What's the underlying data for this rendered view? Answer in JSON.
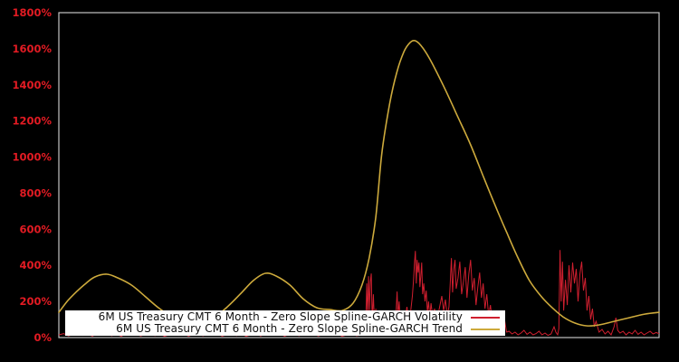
{
  "window": {
    "background": "#000000"
  },
  "chart_data": {
    "type": "line",
    "title": "",
    "xlabel": "",
    "ylabel": "",
    "ylim": [
      0,
      1800
    ],
    "ytick_step": 200,
    "ytick_labels": [
      "0%",
      "200%",
      "400%",
      "600%",
      "800%",
      "1000%",
      "1200%",
      "1400%",
      "1600%",
      "1800%"
    ],
    "xtick_labels": [],
    "grid": false,
    "legend_position": "inside-lower-left",
    "axis_label_color": "#e31b23",
    "border_color": "#c3c3c3",
    "x_domain": [
      0,
      100
    ],
    "series": [
      {
        "name": "6M US Treasury CMT 6 Month - Zero Slope Spline-GARCH Volatility",
        "color": "#cf1f2f",
        "points": [
          [
            0,
            15
          ],
          [
            0.8,
            22
          ],
          [
            1.6,
            9
          ],
          [
            2.4,
            18
          ],
          [
            3.2,
            26
          ],
          [
            4,
            12
          ],
          [
            4.8,
            20
          ],
          [
            5.6,
            8
          ],
          [
            6.4,
            24
          ],
          [
            7.2,
            14
          ],
          [
            8,
            28
          ],
          [
            8.8,
            10
          ],
          [
            9.6,
            19
          ],
          [
            10.4,
            7
          ],
          [
            11.2,
            23
          ],
          [
            12,
            15
          ],
          [
            12.8,
            27
          ],
          [
            13.6,
            9
          ],
          [
            14.4,
            17
          ],
          [
            15.2,
            25
          ],
          [
            16,
            11
          ],
          [
            16.8,
            21
          ],
          [
            17.6,
            7
          ],
          [
            18.4,
            16
          ],
          [
            19.2,
            28
          ],
          [
            20,
            12
          ],
          [
            20.8,
            22
          ],
          [
            21.6,
            8
          ],
          [
            22.4,
            18
          ],
          [
            23.2,
            26
          ],
          [
            24,
            10
          ],
          [
            24.8,
            20
          ],
          [
            25.6,
            14
          ],
          [
            26.4,
            24
          ],
          [
            27.2,
            8
          ],
          [
            28,
            17
          ],
          [
            28.8,
            27
          ],
          [
            29.6,
            11
          ],
          [
            30.4,
            21
          ],
          [
            31.2,
            7
          ],
          [
            32,
            16
          ],
          [
            32.8,
            25
          ],
          [
            33.6,
            9
          ],
          [
            34.4,
            19
          ],
          [
            35.2,
            28
          ],
          [
            36,
            13
          ],
          [
            36.8,
            22
          ],
          [
            37.6,
            8
          ],
          [
            38.4,
            18
          ],
          [
            39.2,
            26
          ],
          [
            40,
            10
          ],
          [
            40.8,
            20
          ],
          [
            41.6,
            14
          ],
          [
            42.4,
            24
          ],
          [
            43.2,
            9
          ],
          [
            44,
            17
          ],
          [
            44.8,
            27
          ],
          [
            45.6,
            12
          ],
          [
            46.4,
            21
          ],
          [
            47.2,
            7
          ],
          [
            48,
            16
          ],
          [
            48.8,
            25
          ],
          [
            49.6,
            10
          ],
          [
            50.4,
            15
          ],
          [
            50.8,
            18
          ],
          [
            51.1,
            40
          ],
          [
            51.3,
            300
          ],
          [
            51.45,
            120
          ],
          [
            51.6,
            340
          ],
          [
            51.75,
            150
          ],
          [
            51.9,
            310
          ],
          [
            52.05,
            355
          ],
          [
            52.2,
            90
          ],
          [
            52.4,
            240
          ],
          [
            52.6,
            60
          ],
          [
            52.8,
            160
          ],
          [
            53,
            45
          ],
          [
            53.2,
            100
          ],
          [
            53.5,
            40
          ],
          [
            53.8,
            80
          ],
          [
            54.1,
            35
          ],
          [
            54.4,
            65
          ],
          [
            54.7,
            120
          ],
          [
            55,
            45
          ],
          [
            55.3,
            90
          ],
          [
            55.6,
            150
          ],
          [
            55.9,
            60
          ],
          [
            56.2,
            150
          ],
          [
            56.35,
            255
          ],
          [
            56.5,
            120
          ],
          [
            56.7,
            200
          ],
          [
            56.9,
            80
          ],
          [
            57.1,
            140
          ],
          [
            57.4,
            60
          ],
          [
            57.7,
            110
          ],
          [
            58,
            170
          ],
          [
            58.3,
            90
          ],
          [
            58.6,
            140
          ],
          [
            58.9,
            230
          ],
          [
            59.1,
            320
          ],
          [
            59.25,
            410
          ],
          [
            59.4,
            480
          ],
          [
            59.55,
            300
          ],
          [
            59.7,
            430
          ],
          [
            59.85,
            360
          ],
          [
            60,
            415
          ],
          [
            60.15,
            280
          ],
          [
            60.3,
            340
          ],
          [
            60.45,
            415
          ],
          [
            60.6,
            240
          ],
          [
            60.8,
            300
          ],
          [
            61,
            200
          ],
          [
            61.2,
            260
          ],
          [
            61.4,
            140
          ],
          [
            61.6,
            200
          ],
          [
            61.8,
            110
          ],
          [
            62,
            190
          ],
          [
            62.3,
            110
          ],
          [
            62.6,
            160
          ],
          [
            62.9,
            95
          ],
          [
            63.2,
            130
          ],
          [
            63.5,
            180
          ],
          [
            63.8,
            230
          ],
          [
            64.1,
            150
          ],
          [
            64.4,
            210
          ],
          [
            64.7,
            120
          ],
          [
            65,
            170
          ],
          [
            65.2,
            300
          ],
          [
            65.4,
            440
          ],
          [
            65.6,
            250
          ],
          [
            65.8,
            380
          ],
          [
            66,
            430
          ],
          [
            66.2,
            270
          ],
          [
            66.5,
            330
          ],
          [
            66.8,
            420
          ],
          [
            67.1,
            240
          ],
          [
            67.4,
            310
          ],
          [
            67.7,
            390
          ],
          [
            68,
            220
          ],
          [
            68.3,
            350
          ],
          [
            68.6,
            430
          ],
          [
            68.9,
            260
          ],
          [
            69.2,
            330
          ],
          [
            69.5,
            180
          ],
          [
            69.8,
            280
          ],
          [
            70.1,
            360
          ],
          [
            70.4,
            220
          ],
          [
            70.7,
            300
          ],
          [
            71,
            160
          ],
          [
            71.3,
            240
          ],
          [
            71.6,
            120
          ],
          [
            71.9,
            180
          ],
          [
            72.2,
            90
          ],
          [
            72.5,
            130
          ],
          [
            72.8,
            60
          ],
          [
            73.1,
            100
          ],
          [
            73.4,
            50
          ],
          [
            73.7,
            130
          ],
          [
            74,
            40
          ],
          [
            74.3,
            90
          ],
          [
            74.6,
            30
          ],
          [
            75,
            35
          ],
          [
            75.5,
            20
          ],
          [
            76,
            30
          ],
          [
            76.5,
            15
          ],
          [
            77,
            25
          ],
          [
            77.5,
            40
          ],
          [
            78,
            18
          ],
          [
            78.5,
            30
          ],
          [
            79,
            15
          ],
          [
            79.5,
            22
          ],
          [
            80,
            35
          ],
          [
            80.5,
            15
          ],
          [
            81,
            25
          ],
          [
            81.5,
            12
          ],
          [
            82,
            20
          ],
          [
            82.5,
            60
          ],
          [
            82.8,
            30
          ],
          [
            83.1,
            15
          ],
          [
            83.3,
            50
          ],
          [
            83.5,
            485
          ],
          [
            83.7,
            200
          ],
          [
            83.9,
            420
          ],
          [
            84.1,
            150
          ],
          [
            84.4,
            320
          ],
          [
            84.7,
            180
          ],
          [
            85,
            400
          ],
          [
            85.3,
            250
          ],
          [
            85.6,
            415
          ],
          [
            85.9,
            300
          ],
          [
            86.2,
            380
          ],
          [
            86.5,
            200
          ],
          [
            86.8,
            350
          ],
          [
            87.1,
            420
          ],
          [
            87.4,
            260
          ],
          [
            87.7,
            330
          ],
          [
            88,
            150
          ],
          [
            88.3,
            230
          ],
          [
            88.6,
            100
          ],
          [
            88.9,
            160
          ],
          [
            89.2,
            60
          ],
          [
            89.5,
            90
          ],
          [
            90,
            30
          ],
          [
            90.5,
            45
          ],
          [
            91,
            20
          ],
          [
            91.5,
            35
          ],
          [
            92,
            15
          ],
          [
            92.5,
            60
          ],
          [
            92.8,
            110
          ],
          [
            93.1,
            40
          ],
          [
            93.5,
            25
          ],
          [
            94,
            35
          ],
          [
            94.5,
            15
          ],
          [
            95,
            30
          ],
          [
            95.5,
            20
          ],
          [
            96,
            40
          ],
          [
            96.5,
            18
          ],
          [
            97,
            30
          ],
          [
            97.5,
            15
          ],
          [
            98,
            25
          ],
          [
            98.5,
            35
          ],
          [
            99,
            20
          ],
          [
            99.5,
            28
          ],
          [
            100,
            22
          ]
        ]
      },
      {
        "name": "6M US Treasury CMT 6 Month - Zero Slope Spline-GARCH Trend",
        "color": "#cdaa3c",
        "points": [
          [
            0,
            140
          ],
          [
            1.5,
            205
          ],
          [
            3,
            256
          ],
          [
            4.5,
            300
          ],
          [
            6,
            336
          ],
          [
            8,
            351
          ],
          [
            9.8,
            331
          ],
          [
            12.1,
            291
          ],
          [
            14.3,
            230
          ],
          [
            16.6,
            165
          ],
          [
            18.9,
            115
          ],
          [
            21.1,
            80
          ],
          [
            23.4,
            72
          ],
          [
            25.6,
            105
          ],
          [
            27.9,
            165
          ],
          [
            30.2,
            240
          ],
          [
            32.4,
            316
          ],
          [
            34.4,
            356
          ],
          [
            36.2,
            341
          ],
          [
            38.5,
            291
          ],
          [
            40.7,
            215
          ],
          [
            43,
            165
          ],
          [
            45.2,
            155
          ],
          [
            47.2,
            150
          ],
          [
            49,
            190
          ],
          [
            50.5,
            291
          ],
          [
            51.7,
            441
          ],
          [
            52.8,
            667
          ],
          [
            53.8,
            1018
          ],
          [
            55.1,
            1293
          ],
          [
            56.3,
            1469
          ],
          [
            57.5,
            1584
          ],
          [
            58.5,
            1634
          ],
          [
            59.3,
            1645
          ],
          [
            60.3,
            1619
          ],
          [
            61.8,
            1544
          ],
          [
            64.1,
            1393
          ],
          [
            66.4,
            1228
          ],
          [
            68.6,
            1068
          ],
          [
            70.9,
            877
          ],
          [
            73.2,
            692
          ],
          [
            74.7,
            576
          ],
          [
            76.5,
            441
          ],
          [
            78.4,
            316
          ],
          [
            80.4,
            226
          ],
          [
            82.2,
            165
          ],
          [
            84,
            115
          ],
          [
            86,
            80
          ],
          [
            87.9,
            65
          ],
          [
            90,
            70
          ],
          [
            92.5,
            90
          ],
          [
            95,
            110
          ],
          [
            97.6,
            130
          ],
          [
            100,
            140
          ]
        ]
      }
    ]
  }
}
